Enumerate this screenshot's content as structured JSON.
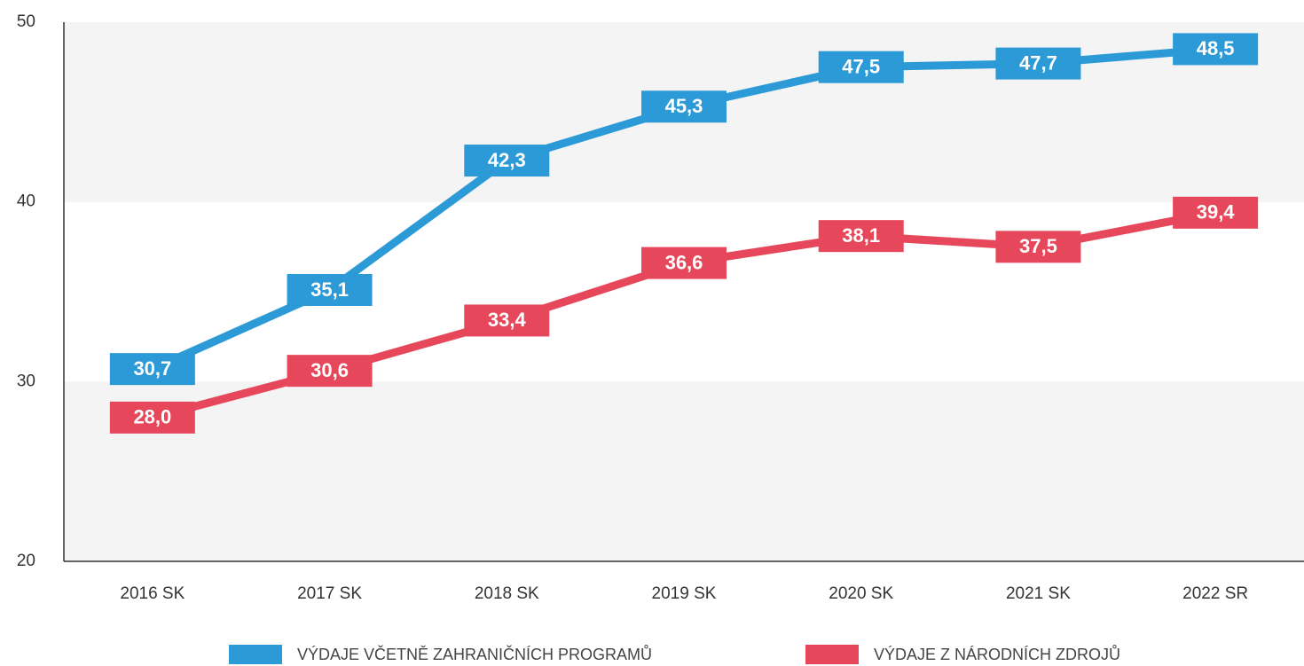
{
  "chart_data": {
    "type": "line",
    "categories": [
      "2016 SK",
      "2017 SK",
      "2018 SK",
      "2019 SK",
      "2020 SK",
      "2021 SK",
      "2022 SR"
    ],
    "series": [
      {
        "name": "VÝDAJE VČETNĚ ZAHRANIČNÍCH PROGRAMŮ",
        "color": "#2b9ad6",
        "values": [
          30.7,
          35.1,
          42.3,
          45.3,
          47.5,
          47.7,
          48.5
        ],
        "value_labels": [
          "30,7",
          "35,1",
          "42,3",
          "45,3",
          "47,5",
          "47,7",
          "48,5"
        ]
      },
      {
        "name": "VÝDAJE Z NÁRODNÍCH ZDROJŮ",
        "color": "#e6475a",
        "values": [
          28.0,
          30.6,
          33.4,
          36.6,
          38.1,
          37.5,
          39.4
        ],
        "value_labels": [
          "28,0",
          "30,6",
          "33,4",
          "36,6",
          "38,1",
          "37,5",
          "39,4"
        ]
      }
    ],
    "ylim": [
      20,
      50
    ],
    "yticks": [
      20,
      30,
      40,
      50
    ],
    "grid": true
  }
}
